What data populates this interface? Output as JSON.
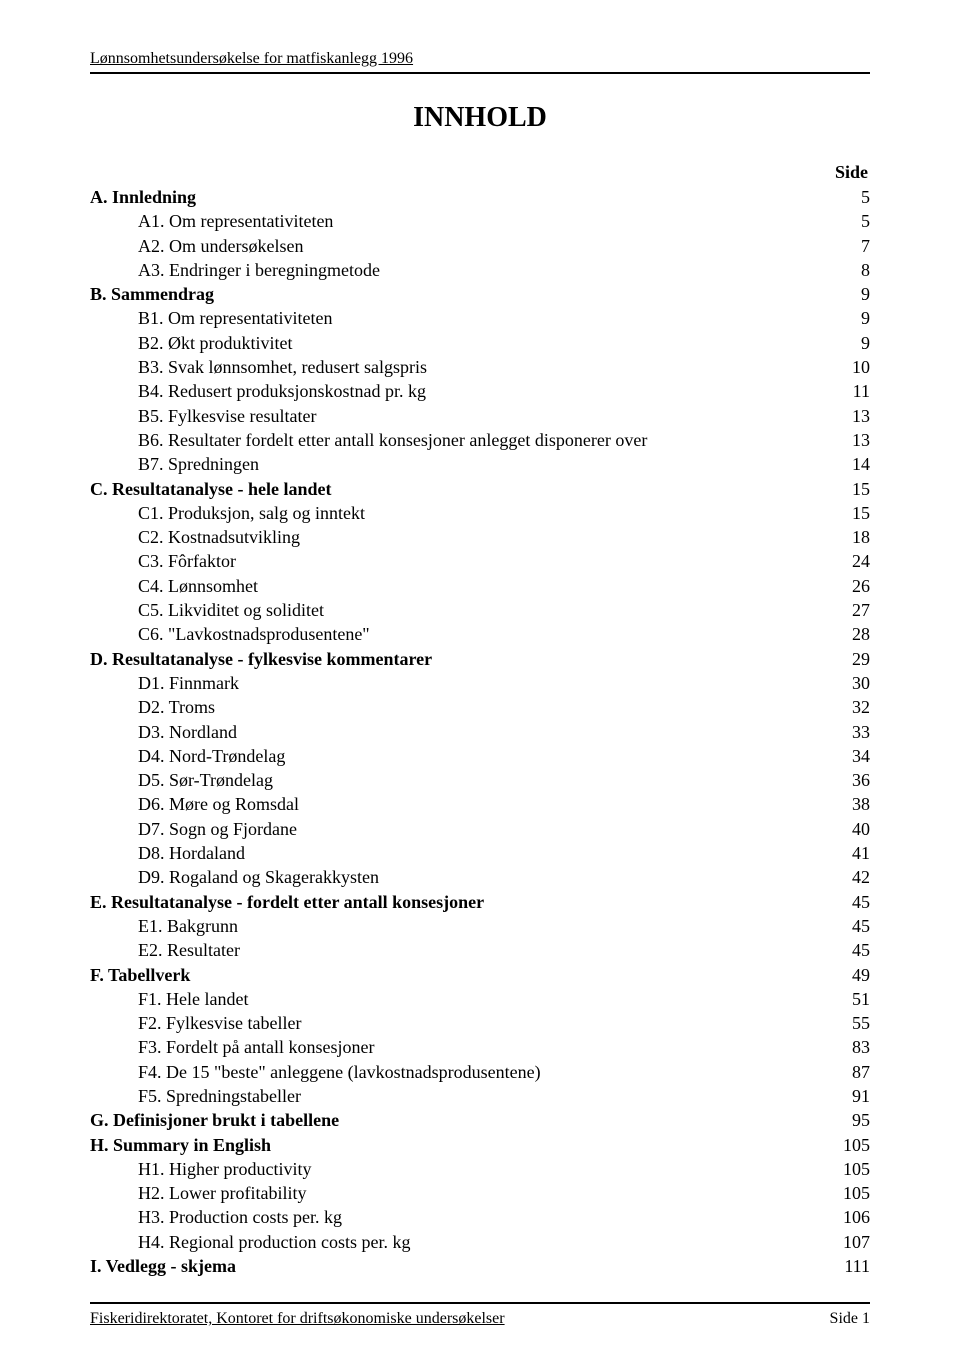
{
  "header": "Lønnsomhetsundersøkelse for matfiskanlegg 1996",
  "title": "INNHOLD",
  "side_label": "Side",
  "toc": [
    {
      "label": "A. Innledning",
      "page": "5",
      "section": true
    },
    {
      "label": "A1. Om representativiteten",
      "page": "5"
    },
    {
      "label": "A2. Om undersøkelsen",
      "page": "7"
    },
    {
      "label": "A3. Endringer i beregningmetode",
      "page": "8"
    },
    {
      "label": "B. Sammendrag",
      "page": "9",
      "section": true
    },
    {
      "label": "B1. Om representativiteten",
      "page": "9"
    },
    {
      "label": "B2. Økt produktivitet",
      "page": "9"
    },
    {
      "label": "B3. Svak lønnsomhet, redusert salgspris",
      "page": "10"
    },
    {
      "label": "B4. Redusert produksjonskostnad pr. kg",
      "page": "11"
    },
    {
      "label": "B5. Fylkesvise resultater",
      "page": "13"
    },
    {
      "label": "B6. Resultater fordelt etter antall konsesjoner anlegget disponerer over",
      "page": "13"
    },
    {
      "label": "B7. Spredningen",
      "page": "14"
    },
    {
      "label": "C. Resultatanalyse - hele landet",
      "page": "15",
      "section": true
    },
    {
      "label": "C1. Produksjon, salg og inntekt",
      "page": "15"
    },
    {
      "label": "C2. Kostnadsutvikling",
      "page": "18"
    },
    {
      "label": "C3. Fôrfaktor",
      "page": "24"
    },
    {
      "label": "C4. Lønnsomhet",
      "page": "26"
    },
    {
      "label": "C5. Likviditet og soliditet",
      "page": "27"
    },
    {
      "label": "C6. \"Lavkostnadsprodusentene\"",
      "page": "28"
    },
    {
      "label": "D. Resultatanalyse - fylkesvise kommentarer",
      "page": "29",
      "section": true
    },
    {
      "label": "D1. Finnmark",
      "page": "30"
    },
    {
      "label": "D2. Troms",
      "page": "32"
    },
    {
      "label": "D3. Nordland",
      "page": "33"
    },
    {
      "label": "D4. Nord-Trøndelag",
      "page": "34"
    },
    {
      "label": "D5. Sør-Trøndelag",
      "page": "36"
    },
    {
      "label": "D6. Møre og Romsdal",
      "page": "38"
    },
    {
      "label": "D7. Sogn og Fjordane",
      "page": "40"
    },
    {
      "label": "D8. Hordaland",
      "page": "41"
    },
    {
      "label": "D9. Rogaland og Skagerakkysten",
      "page": "42"
    },
    {
      "label": "E. Resultatanalyse - fordelt etter antall konsesjoner",
      "page": "45",
      "section": true
    },
    {
      "label": "E1. Bakgrunn",
      "page": "45"
    },
    {
      "label": "E2. Resultater",
      "page": "45"
    },
    {
      "label": "F. Tabellverk",
      "page": "49",
      "section": true
    },
    {
      "label": "F1. Hele landet",
      "page": "51"
    },
    {
      "label": "F2. Fylkesvise tabeller",
      "page": "55"
    },
    {
      "label": "F3. Fordelt på antall konsesjoner",
      "page": "83"
    },
    {
      "label": "F4. De 15 \"beste\" anleggene (lavkostnadsprodusentene)",
      "page": "87"
    },
    {
      "label": "F5. Spredningstabeller",
      "page": "91"
    },
    {
      "label": "G. Definisjoner brukt i tabellene",
      "page": "95",
      "section": true
    },
    {
      "label": "H. Summary in English",
      "page": "105",
      "section": true
    },
    {
      "label": "H1. Higher productivity",
      "page": "105"
    },
    {
      "label": "H2. Lower profitability",
      "page": "105"
    },
    {
      "label": "H3. Production costs per. kg",
      "page": "106"
    },
    {
      "label": "H4. Regional production costs per. kg",
      "page": "107"
    },
    {
      "label": "I.  Vedlegg - skjema",
      "page": "111",
      "section": true
    }
  ],
  "footer_left": "Fiskeridirektoratet, Kontoret for driftsøkonomiske undersøkelser",
  "footer_right": "Side 1"
}
